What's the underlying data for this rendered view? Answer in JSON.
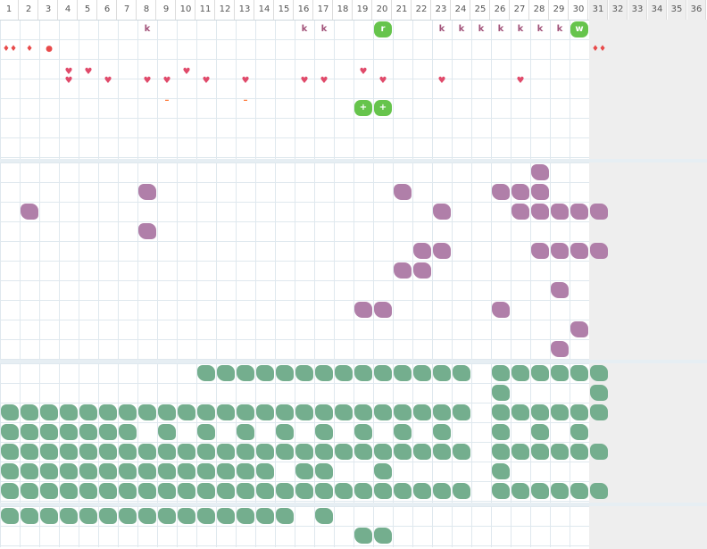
{
  "columns": [
    "1",
    "2",
    "3",
    "4",
    "5",
    "6",
    "7",
    "8",
    "9",
    "10",
    "11",
    "12",
    "13",
    "14",
    "15",
    "16",
    "17",
    "18",
    "19",
    "20",
    "21",
    "22",
    "23",
    "24",
    "25",
    "26",
    "27",
    "28",
    "29",
    "30",
    "31",
    "32",
    "33",
    "34",
    "35",
    "36"
  ],
  "colors": {
    "grid": "#dfe8ee",
    "purple": "#b07fa9",
    "green": "#74ae8e",
    "bright_green": "#66c44c",
    "heart": "#e04a6a",
    "k": "#a2537a",
    "dim": "#eeeeee"
  },
  "top_section": {
    "k_letter": "k",
    "k_columns": [
      8,
      16,
      17,
      23,
      24,
      25,
      26,
      27,
      28,
      29
    ],
    "green_tags": [
      {
        "col": 20,
        "row": 0,
        "label": "r"
      },
      {
        "col": 30,
        "row": 0,
        "label": "w"
      },
      {
        "col": 19,
        "row": 4,
        "label": "+"
      },
      {
        "col": 20,
        "row": 4,
        "label": "+"
      }
    ],
    "drops": [
      {
        "col": 1,
        "label": "♦♦"
      },
      {
        "col": 2,
        "label": "♦"
      },
      {
        "col": 3,
        "label": "●"
      },
      {
        "col": 31,
        "label": "♦♦"
      }
    ],
    "hearts_row2": [
      4,
      5,
      10,
      19
    ],
    "hearts_row3": [
      4,
      6,
      8,
      9,
      11,
      13,
      16,
      17,
      20,
      23,
      27
    ],
    "heart_glyph": "♥",
    "dashes": [
      9,
      13
    ],
    "dash_glyph": "–"
  },
  "purple_section": {
    "rows": [
      [
        28
      ],
      [
        8,
        21,
        26,
        27,
        28
      ],
      [
        2,
        23,
        27,
        28,
        29,
        30,
        31
      ],
      [
        8
      ],
      [
        22,
        23,
        28,
        29,
        30,
        31
      ],
      [
        21,
        22
      ],
      [
        29
      ],
      [
        19,
        20,
        26
      ],
      [
        30
      ],
      [
        29
      ]
    ]
  },
  "green_section": {
    "rows": [
      [
        11,
        12,
        13,
        14,
        15,
        16,
        17,
        18,
        19,
        20,
        21,
        22,
        23,
        24,
        26,
        27,
        28,
        29,
        30,
        31
      ],
      [
        26,
        31
      ],
      [
        1,
        2,
        3,
        4,
        5,
        6,
        7,
        8,
        9,
        10,
        11,
        12,
        13,
        14,
        15,
        16,
        17,
        18,
        19,
        20,
        21,
        22,
        23,
        24,
        26,
        27,
        28,
        29,
        30,
        31
      ],
      [
        1,
        2,
        3,
        4,
        5,
        6,
        7,
        9,
        11,
        13,
        15,
        17,
        19,
        21,
        23,
        26,
        28,
        30
      ],
      [
        1,
        2,
        3,
        4,
        5,
        6,
        7,
        8,
        9,
        10,
        11,
        12,
        13,
        14,
        15,
        16,
        17,
        18,
        19,
        20,
        21,
        22,
        23,
        24,
        26,
        27,
        28,
        29,
        30,
        31
      ],
      [
        1,
        2,
        3,
        4,
        5,
        6,
        7,
        8,
        9,
        10,
        11,
        12,
        13,
        14,
        16,
        17,
        20,
        26
      ],
      [
        1,
        2,
        3,
        4,
        5,
        6,
        7,
        8,
        9,
        10,
        11,
        12,
        13,
        14,
        15,
        16,
        17,
        18,
        19,
        20,
        21,
        22,
        23,
        24,
        26,
        27,
        28,
        29,
        30,
        31
      ]
    ]
  },
  "bottom_section": {
    "rows": [
      [
        1,
        2,
        3,
        4,
        5,
        6,
        7,
        8,
        9,
        10,
        11,
        12,
        13,
        14,
        15,
        17
      ],
      [
        19,
        20
      ]
    ]
  }
}
